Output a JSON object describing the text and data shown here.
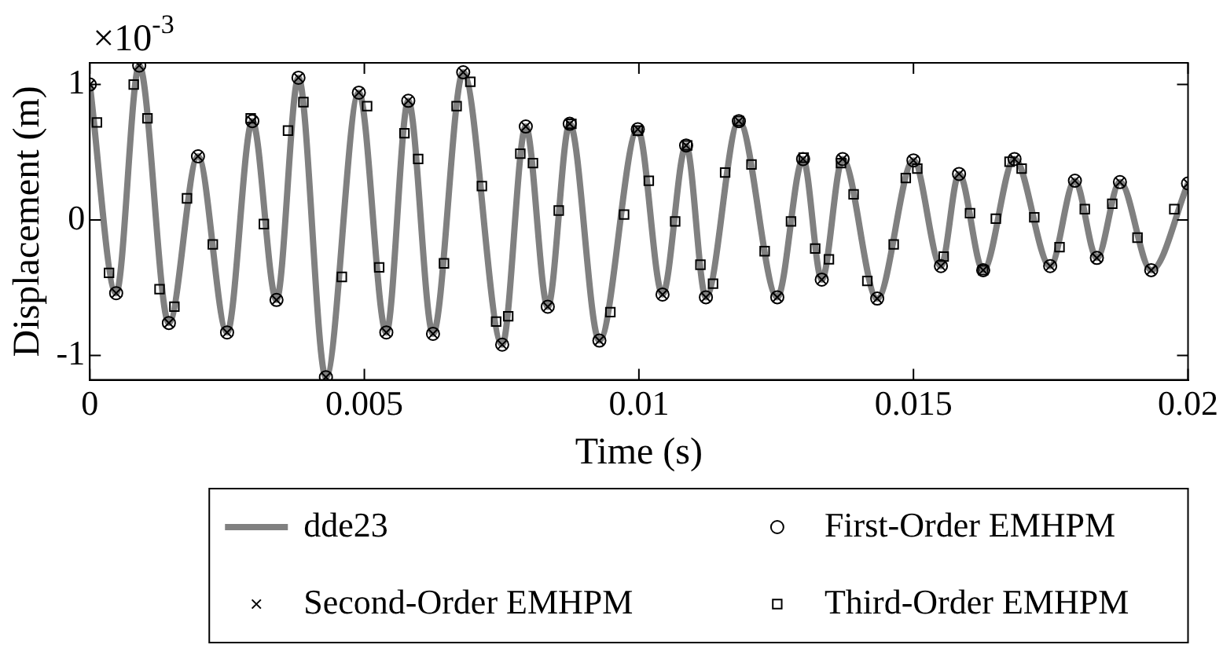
{
  "chart_data": {
    "type": "line",
    "xlabel": "Time (s)",
    "ylabel": "Displacement (m)",
    "annotations": [
      "×10$^{-3}$"
    ],
    "xlim": [
      0,
      0.02
    ],
    "ylim": [
      -1.18,
      1.16
    ],
    "xticks": [
      0,
      0.005,
      0.01,
      0.015,
      0.02
    ],
    "yticks": [
      -1,
      0,
      1
    ],
    "grid": false,
    "legend": "bottom",
    "series": [
      {
        "name": "dde23",
        "type": "line",
        "color": "#808080",
        "marker": "none",
        "line_style": "solid",
        "x": [
          0,
          0.00048,
          0.0009,
          0.00144,
          0.00197,
          0.0025,
          0.00296,
          0.0034,
          0.0038,
          0.0043,
          0.0049,
          0.0054,
          0.0058,
          0.00625,
          0.0068,
          0.00751,
          0.00794,
          0.00834,
          0.00874,
          0.00928,
          0.00998,
          0.01043,
          0.01086,
          0.01122,
          0.01182,
          0.01252,
          0.01299,
          0.01333,
          0.01371,
          0.01434,
          0.015,
          0.0155,
          0.01583,
          0.01627,
          0.01684,
          0.01749,
          0.01794,
          0.01834,
          0.01876,
          0.01933,
          0.02
        ],
        "values": [
          1.0,
          -0.54,
          1.14,
          -0.76,
          0.47,
          -0.83,
          0.73,
          -0.59,
          1.05,
          -1.16,
          0.94,
          -0.83,
          0.88,
          -0.84,
          1.09,
          -0.92,
          0.69,
          -0.64,
          0.71,
          -0.89,
          0.67,
          -0.55,
          0.55,
          -0.57,
          0.73,
          -0.57,
          0.45,
          -0.44,
          0.45,
          -0.58,
          0.44,
          -0.34,
          0.34,
          -0.37,
          0.45,
          -0.34,
          0.29,
          -0.28,
          0.28,
          -0.37,
          0.27
        ]
      },
      {
        "name": "First-Order EMHPM",
        "type": "scatter",
        "color": "#000000",
        "marker": "circle",
        "x": [
          0,
          0.00048,
          0.0009,
          0.00144,
          0.00197,
          0.0025,
          0.00296,
          0.0034,
          0.0038,
          0.0043,
          0.0049,
          0.0054,
          0.0058,
          0.00625,
          0.0068,
          0.00751,
          0.00794,
          0.00834,
          0.00874,
          0.00928,
          0.00998,
          0.01043,
          0.01086,
          0.01122,
          0.01182,
          0.01252,
          0.01299,
          0.01333,
          0.01371,
          0.01434,
          0.015,
          0.0155,
          0.01583,
          0.01627,
          0.01684,
          0.01749,
          0.01794,
          0.01834,
          0.01876,
          0.01933,
          0.02
        ],
        "values": [
          1.0,
          -0.54,
          1.14,
          -0.76,
          0.47,
          -0.83,
          0.73,
          -0.59,
          1.05,
          -1.16,
          0.94,
          -0.83,
          0.88,
          -0.84,
          1.09,
          -0.92,
          0.69,
          -0.64,
          0.71,
          -0.89,
          0.67,
          -0.55,
          0.55,
          -0.57,
          0.73,
          -0.57,
          0.45,
          -0.44,
          0.45,
          -0.58,
          0.44,
          -0.34,
          0.34,
          -0.37,
          0.45,
          -0.34,
          0.29,
          -0.28,
          0.28,
          -0.37,
          0.27
        ]
      },
      {
        "name": "Second-Order EMHPM",
        "type": "scatter",
        "color": "#000000",
        "marker": "cross",
        "x": [
          0,
          0.00048,
          0.0009,
          0.00144,
          0.00197,
          0.0025,
          0.00296,
          0.0034,
          0.0038,
          0.0043,
          0.0049,
          0.0054,
          0.0058,
          0.00625,
          0.0068,
          0.00751,
          0.00794,
          0.00834,
          0.00874,
          0.00928,
          0.00998,
          0.01043,
          0.01086,
          0.01122,
          0.01182,
          0.01252,
          0.01299,
          0.01333,
          0.01371,
          0.01434,
          0.015,
          0.0155,
          0.01583,
          0.01627,
          0.01684,
          0.01749,
          0.01794,
          0.01834,
          0.01876,
          0.01933,
          0.02
        ],
        "values": [
          1.0,
          -0.54,
          1.14,
          -0.76,
          0.47,
          -0.83,
          0.73,
          -0.59,
          1.05,
          -1.16,
          0.94,
          -0.83,
          0.88,
          -0.84,
          1.09,
          -0.92,
          0.69,
          -0.64,
          0.71,
          -0.89,
          0.67,
          -0.55,
          0.55,
          -0.57,
          0.73,
          -0.57,
          0.45,
          -0.44,
          0.45,
          -0.58,
          0.44,
          -0.34,
          0.34,
          -0.37,
          0.45,
          -0.34,
          0.29,
          -0.28,
          0.28,
          -0.37,
          0.27
        ]
      },
      {
        "name": "Third-Order EMHPM",
        "type": "scatter",
        "color": "#000000",
        "marker": "square",
        "x": [
          0.00013,
          0.00035,
          0.0008,
          0.00105,
          0.00127,
          0.00154,
          0.00177,
          0.00224,
          0.00293,
          0.00317,
          0.00361,
          0.00389,
          0.00459,
          0.00505,
          0.00527,
          0.00573,
          0.00598,
          0.00645,
          0.00668,
          0.00693,
          0.00714,
          0.0074,
          0.00762,
          0.00784,
          0.00807,
          0.00854,
          0.00877,
          0.00948,
          0.00973,
          0.00998,
          0.01018,
          0.01066,
          0.01088,
          0.01112,
          0.01135,
          0.01157,
          0.01182,
          0.01205,
          0.01229,
          0.01277,
          0.013,
          0.01321,
          0.01346,
          0.01368,
          0.01391,
          0.01416,
          0.01464,
          0.01486,
          0.01507,
          0.01555,
          0.01603,
          0.01627,
          0.0165,
          0.01675,
          0.01697,
          0.0172,
          0.01766,
          0.01812,
          0.01862,
          0.01908,
          0.01975
        ],
        "values": [
          0.72,
          -0.39,
          1.0,
          0.75,
          -0.51,
          -0.64,
          0.16,
          -0.18,
          0.75,
          -0.03,
          0.66,
          0.87,
          -0.42,
          0.84,
          -0.35,
          0.64,
          0.45,
          -0.32,
          0.84,
          1.02,
          0.25,
          -0.75,
          -0.71,
          0.49,
          0.42,
          0.07,
          0.71,
          -0.68,
          0.04,
          0.66,
          0.29,
          -0.01,
          0.55,
          -0.33,
          -0.47,
          0.35,
          0.73,
          0.41,
          -0.23,
          -0.01,
          0.46,
          -0.21,
          -0.29,
          0.42,
          0.19,
          -0.45,
          -0.18,
          0.31,
          0.38,
          -0.27,
          0.05,
          -0.37,
          0.01,
          0.43,
          0.38,
          0.02,
          -0.2,
          0.08,
          0.12,
          -0.13,
          0.08
        ]
      }
    ]
  }
}
